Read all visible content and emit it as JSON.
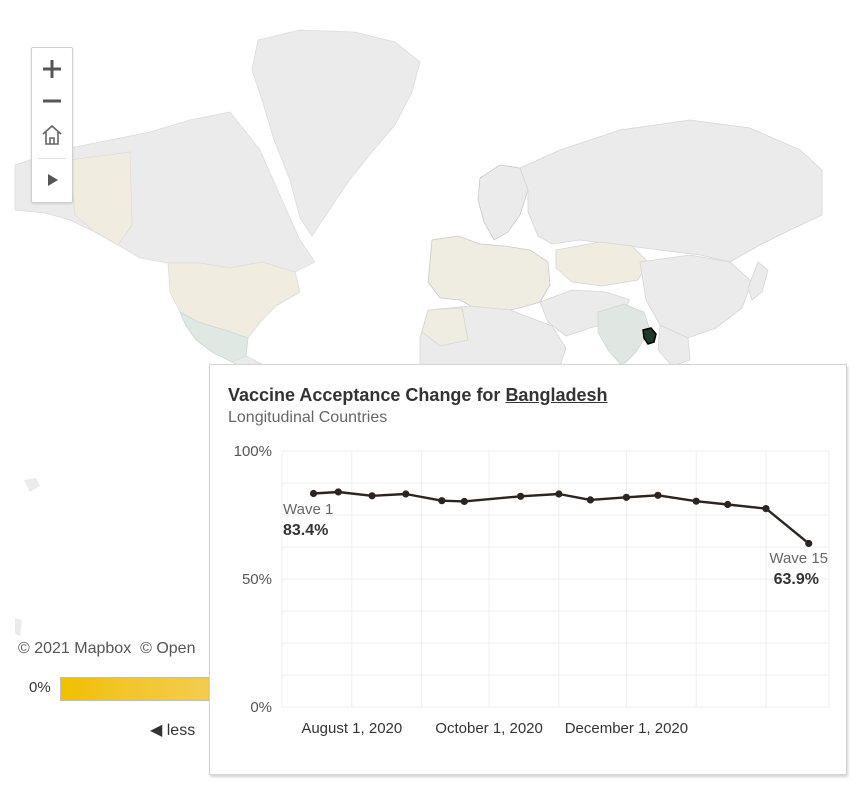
{
  "map": {
    "controls": {
      "zoom_in": "+",
      "zoom_out": "−",
      "home": "home",
      "play": "play"
    },
    "attribution": {
      "mapbox": "© 2021 Mapbox",
      "osm": "© Open"
    },
    "legend": {
      "min_label": "0%",
      "less_label": "◀ less",
      "colors": [
        "#f0c000",
        "#f4cd52"
      ]
    },
    "highlighted_country_color": "#1b3a2a",
    "colors": {
      "land": "#ebebeb",
      "land_tint": "#f0ecdf",
      "water": "#ffffff"
    }
  },
  "tooltip": {
    "title_prefix": "Vaccine Acceptance Change for ",
    "country": "Bangladesh",
    "subtitle": "Longitudinal Countries"
  },
  "chart_data": {
    "type": "line",
    "title": "Vaccine Acceptance Change for Bangladesh",
    "subtitle": "Longitudinal Countries",
    "x_labels": [
      "August 1, 2020",
      "October 1, 2020",
      "December 1, 2020"
    ],
    "y_ticks": [
      "100%",
      "50%",
      "0%"
    ],
    "ylim": [
      0,
      100
    ],
    "series": [
      {
        "values": [
          {
            "x": "2020-07-15",
            "y": 83.4
          },
          {
            "x": "2020-07-26",
            "y": 84.0
          },
          {
            "x": "2020-08-10",
            "y": 82.5
          },
          {
            "x": "2020-08-25",
            "y": 83.2
          },
          {
            "x": "2020-09-10",
            "y": 80.6
          },
          {
            "x": "2020-09-20",
            "y": 80.3
          },
          {
            "x": "2020-10-15",
            "y": 82.3
          },
          {
            "x": "2020-11-01",
            "y": 83.2
          },
          {
            "x": "2020-11-15",
            "y": 80.9
          },
          {
            "x": "2020-12-01",
            "y": 81.9
          },
          {
            "x": "2020-12-15",
            "y": 82.7
          },
          {
            "x": "2021-01-01",
            "y": 80.4
          },
          {
            "x": "2021-01-15",
            "y": 79.1
          },
          {
            "x": "2021-02-01",
            "y": 77.5
          },
          {
            "x": "2021-02-20",
            "y": 63.9
          }
        ]
      }
    ],
    "annotations": [
      {
        "label": "Wave 1",
        "value": "83.4%"
      },
      {
        "label": "Wave 15",
        "value": "63.9%"
      }
    ],
    "grid": true,
    "line_color": "#2b2420"
  }
}
